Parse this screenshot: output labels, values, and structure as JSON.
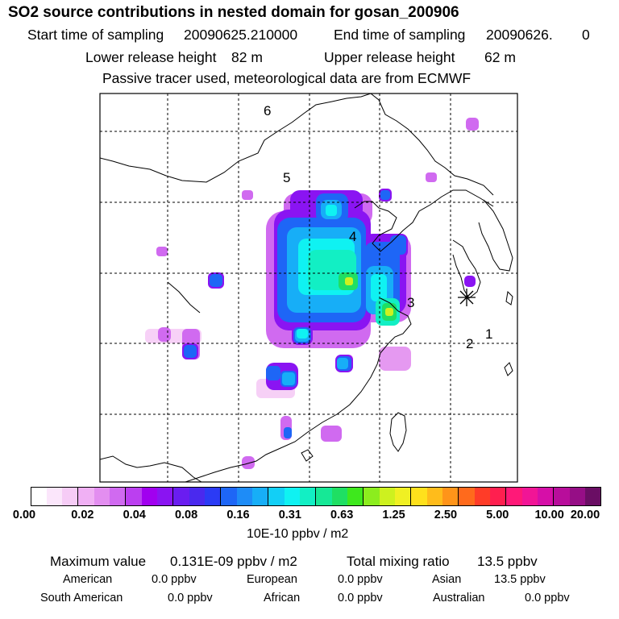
{
  "header": {
    "title": "SO2 source contributions in nested domain for gosan_200906",
    "start_label": "Start time of sampling",
    "start_value": "20090625.210000",
    "end_label": "End time of sampling",
    "end_value": "20090626.",
    "end_suffix": "0",
    "lower_label": "Lower release height",
    "lower_value": "82 m",
    "upper_label": "Upper release height",
    "upper_value": "62 m",
    "note": "Passive tracer used, meteorological data are from ECMWF"
  },
  "map": {
    "region_labels": [
      "1",
      "2",
      "3",
      "4",
      "5",
      "6"
    ],
    "receptor_marker": "asterisk-icon"
  },
  "colorbar": {
    "colors": [
      "#ffffff",
      "#fbe6fb",
      "#f6ccf6",
      "#f0b0f4",
      "#e38ef0",
      "#d06af0",
      "#bb3ff0",
      "#a100ef",
      "#8a14f2",
      "#6a1df0",
      "#4a29ee",
      "#2b3bf5",
      "#1e66f6",
      "#1e8cf7",
      "#17aef7",
      "#12cff6",
      "#0ff2f2",
      "#12efc4",
      "#16e896",
      "#1fdf63",
      "#3ee81d",
      "#8ced1e",
      "#cdf11f",
      "#f0f023",
      "#ffe11c",
      "#ffbc1b",
      "#ff9419",
      "#ff6a1c",
      "#ff3c28",
      "#ff1f4f",
      "#ff1978",
      "#f11596",
      "#d60fa8",
      "#b80d9b",
      "#960e86",
      "#6a0e64"
    ],
    "ticks": [
      "0.00",
      "0.02",
      "0.04",
      "0.08",
      "0.16",
      "0.31",
      "0.63",
      "1.25",
      "2.50",
      "5.00",
      "10.00",
      "20.00"
    ],
    "units": "10E-10 ppbv / m2"
  },
  "summary": {
    "max_label": "Maximum value",
    "max_value": "0.131E-09 ppbv / m2",
    "total_label": "Total mixing ratio",
    "total_value": "13.5 ppbv",
    "regions": [
      {
        "name": "American",
        "value": "0.0 ppbv"
      },
      {
        "name": "European",
        "value": "0.0 ppbv"
      },
      {
        "name": "Asian",
        "value": "13.5 ppbv"
      },
      {
        "name": "South American",
        "value": "0.0 ppbv"
      },
      {
        "name": "African",
        "value": "0.0 ppbv"
      },
      {
        "name": "Australian",
        "value": "0.0 ppbv"
      }
    ]
  }
}
